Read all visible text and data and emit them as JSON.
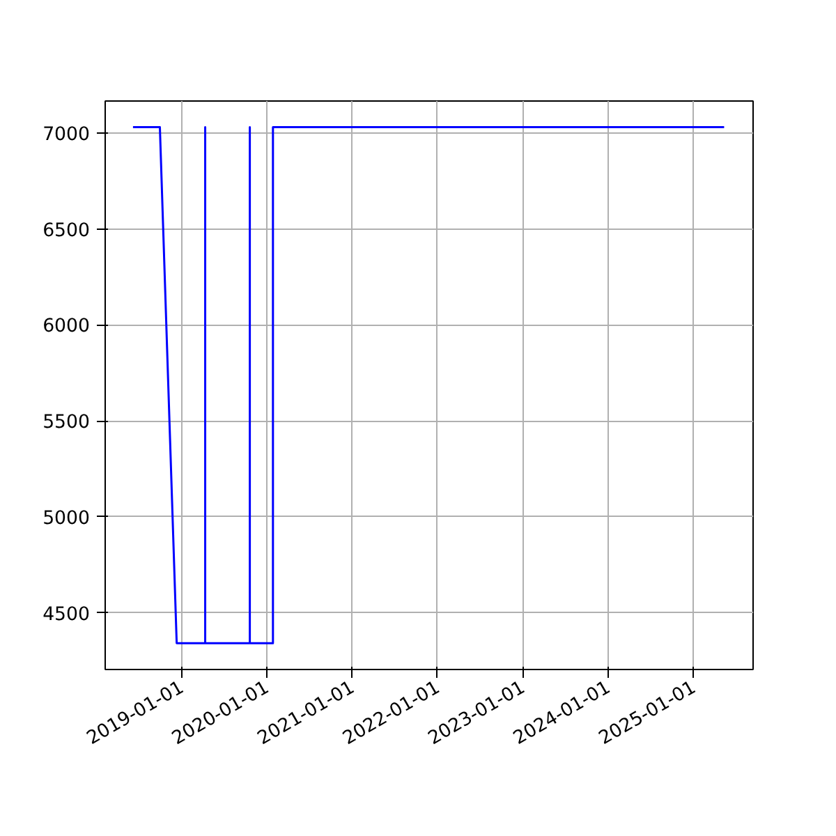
{
  "chart_data": {
    "type": "line",
    "x": [
      "2018-06-08",
      "2018-10-01",
      "2018-12-12",
      "2019-04-13",
      "2019-04-13",
      "2019-04-13",
      "2019-10-21",
      "2019-10-21",
      "2019-10-21",
      "2020-01-28",
      "2020-01-28",
      "2025-05-12"
    ],
    "series": [
      {
        "color": "#0000ff",
        "values": [
          7031,
          7031,
          4342,
          4342,
          7031,
          4342,
          4342,
          7031,
          4342,
          4342,
          7031,
          7031
        ]
      }
    ],
    "xlim": [
      "2018-02-09",
      "2025-09-13"
    ],
    "xticks": [
      "2019-01-01",
      "2020-01-01",
      "2021-01-01",
      "2022-01-01",
      "2023-01-01",
      "2024-01-01",
      "2025-01-01"
    ],
    "ylim": [
      4205,
      7167
    ],
    "yticks": [
      4500,
      5000,
      5500,
      6000,
      6500,
      7000
    ],
    "grid": true,
    "marker": "none",
    "line_style": "solid"
  }
}
